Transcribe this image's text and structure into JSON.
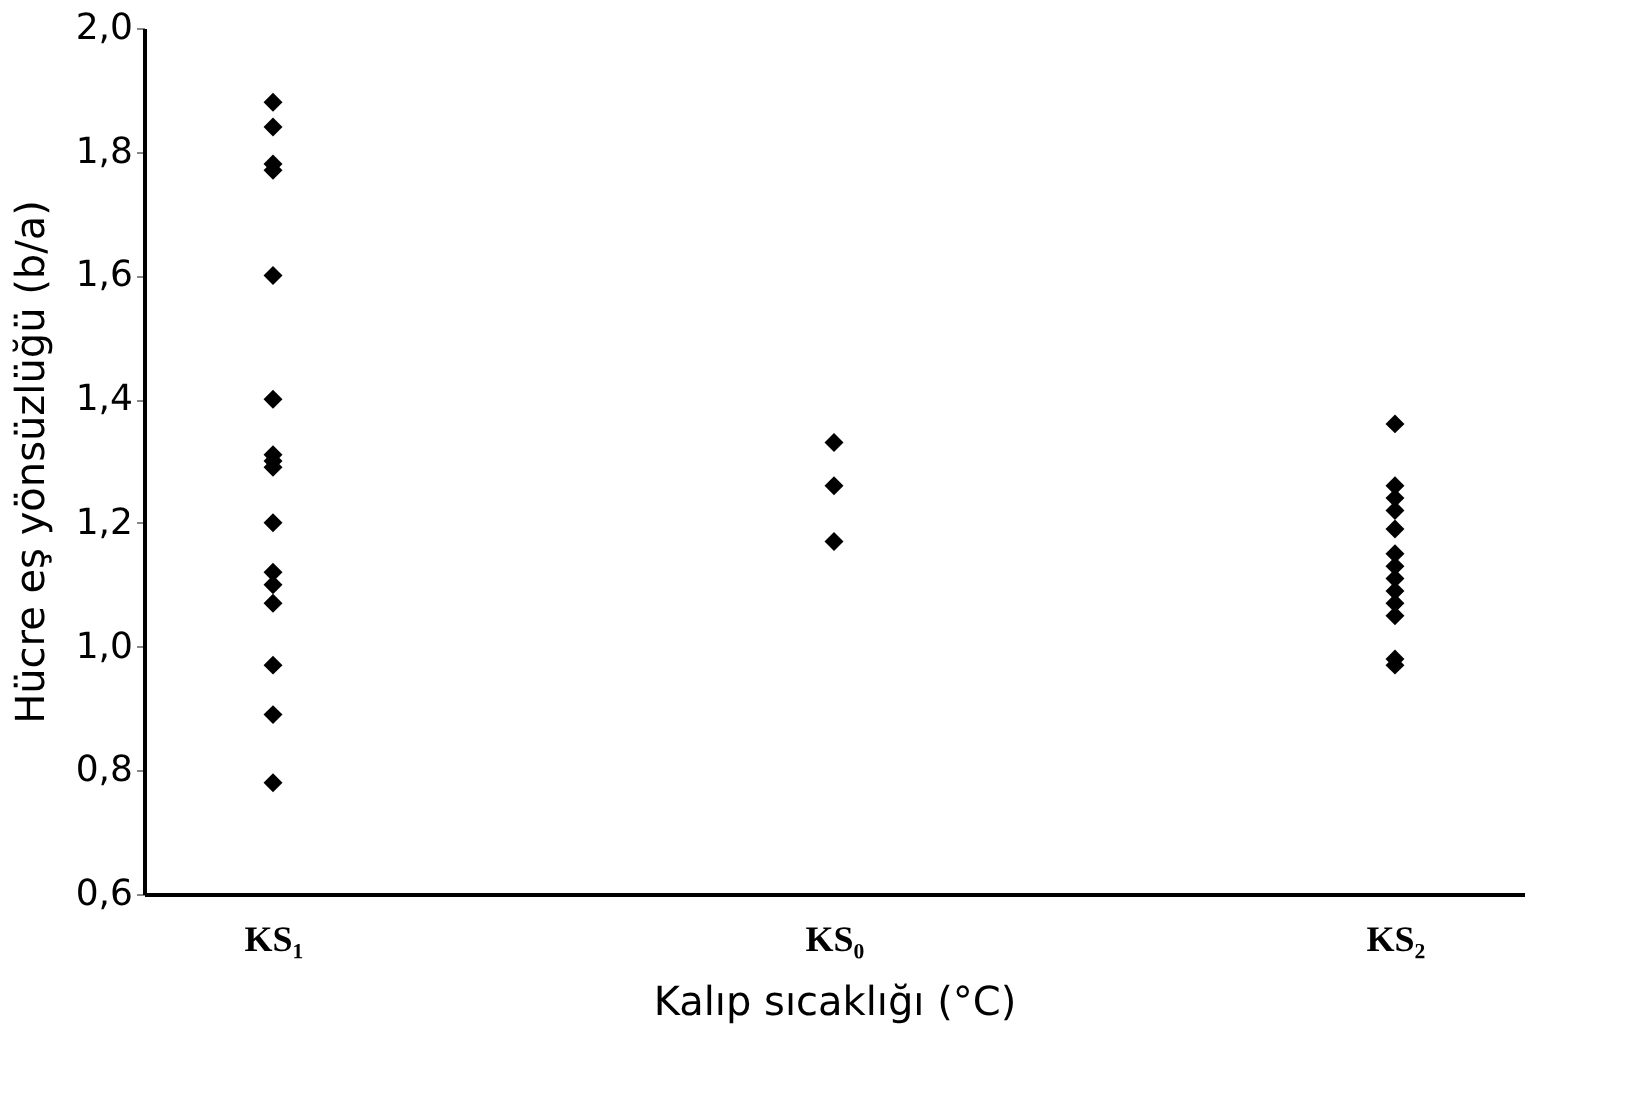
{
  "chart_data": {
    "type": "scatter",
    "xlabel": "Kalıp sıcaklığı (°C)",
    "ylabel": "Hücre eş yönsüzlüğü (b/a)",
    "categories": [
      "KS₁",
      "KS₀",
      "KS₂"
    ],
    "series": [
      {
        "color": "#000000",
        "x": [
          "KS₁",
          "KS₁",
          "KS₁",
          "KS₁",
          "KS₁",
          "KS₁",
          "KS₁",
          "KS₁",
          "KS₁",
          "KS₁",
          "KS₁",
          "KS₁",
          "KS₁",
          "KS₁",
          "KS₁",
          "KS₁"
        ],
        "values": [
          1.88,
          1.84,
          1.78,
          1.77,
          1.6,
          1.4,
          1.31,
          1.3,
          1.29,
          1.2,
          1.12,
          1.1,
          1.07,
          0.97,
          0.89,
          0.78
        ]
      },
      {
        "color": "#000000",
        "x": [
          "KS₀",
          "KS₀",
          "KS₀"
        ],
        "values": [
          1.33,
          1.26,
          1.17
        ]
      },
      {
        "color": "#000000",
        "x": [
          "KS₂",
          "KS₂",
          "KS₂",
          "KS₂",
          "KS₂",
          "KS₂",
          "KS₂",
          "KS₂",
          "KS₂",
          "KS₂",
          "KS₂",
          "KS₂",
          "KS₂"
        ],
        "values": [
          1.36,
          1.26,
          1.24,
          1.22,
          1.19,
          1.15,
          1.13,
          1.11,
          1.09,
          1.07,
          1.05,
          0.98,
          0.97
        ]
      }
    ],
    "ylim": [
      0.6,
      2.0
    ],
    "yticks": [
      {
        "value": 0.6,
        "label": "0,6"
      },
      {
        "value": 0.8,
        "label": "0,8"
      },
      {
        "value": 1.0,
        "label": "1,0"
      },
      {
        "value": 1.2,
        "label": "1,2"
      },
      {
        "value": 1.4,
        "label": "1,4"
      },
      {
        "value": 1.6,
        "label": "1,6"
      },
      {
        "value": 1.8,
        "label": "1,8"
      },
      {
        "value": 2.0,
        "label": "2,0"
      }
    ],
    "grid": false,
    "marker": "diamond"
  }
}
